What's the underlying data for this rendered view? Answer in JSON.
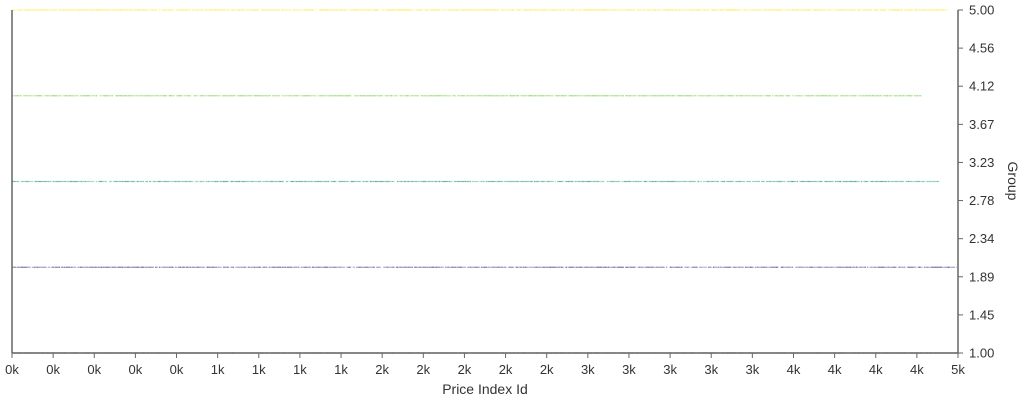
{
  "chart_data": {
    "type": "scatter",
    "title": "",
    "xlabel": "Price Index Id",
    "ylabel": "Group",
    "xlim": [
      0,
      4600
    ],
    "ylim": [
      1.0,
      5.0
    ],
    "grid": false,
    "legend": "none",
    "x_tick_values": [
      0,
      200,
      400,
      600,
      800,
      1000,
      1200,
      1400,
      1600,
      1800,
      2000,
      2200,
      2400,
      2600,
      2800,
      3000,
      3200,
      3400,
      3600,
      3800,
      4000,
      4200,
      4400,
      4600
    ],
    "x_tick_labels": [
      "0k",
      "0k",
      "0k",
      "0k",
      "0k",
      "1k",
      "1k",
      "1k",
      "1k",
      "2k",
      "2k",
      "2k",
      "2k",
      "2k",
      "3k",
      "3k",
      "3k",
      "3k",
      "3k",
      "4k",
      "4k",
      "4k",
      "4k",
      "5k"
    ],
    "y_tick_labels": [
      "1.00",
      "1.45",
      "1.89",
      "2.34",
      "2.78",
      "3.23",
      "3.67",
      "4.12",
      "4.56",
      "5.00"
    ],
    "series": [
      {
        "group": 1,
        "x_range": [
          0,
          4600
        ],
        "color": "#440154"
      },
      {
        "group": 2,
        "x_range": [
          0,
          4590
        ],
        "color": "#414487"
      },
      {
        "group": 3,
        "x_range": [
          0,
          4500
        ],
        "color": "#2a9d8f"
      },
      {
        "group": 4,
        "x_range": [
          0,
          4420
        ],
        "color": "#7ad151"
      },
      {
        "group": 5,
        "x_range": [
          0,
          4550
        ],
        "color": "#fde725"
      }
    ]
  }
}
